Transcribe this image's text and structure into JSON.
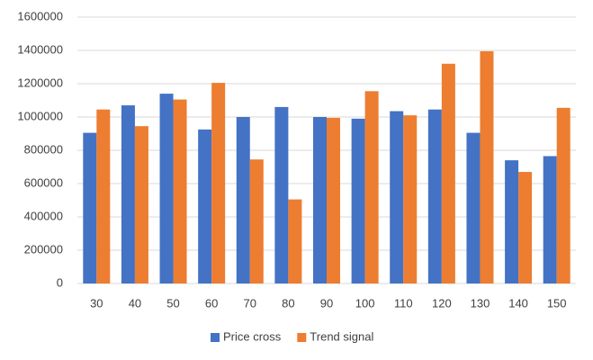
{
  "chart_data": {
    "type": "bar",
    "categories": [
      "30",
      "40",
      "50",
      "60",
      "70",
      "80",
      "90",
      "100",
      "110",
      "120",
      "130",
      "140",
      "150"
    ],
    "series": [
      {
        "name": "Price cross",
        "color": "#4472c4",
        "values": [
          905000,
          1070000,
          1140000,
          925000,
          1000000,
          1060000,
          1000000,
          990000,
          1035000,
          1045000,
          905000,
          740000,
          765000
        ]
      },
      {
        "name": "Trend signal",
        "color": "#ed7d31",
        "values": [
          1045000,
          945000,
          1105000,
          1205000,
          745000,
          505000,
          995000,
          1155000,
          1010000,
          1320000,
          1395000,
          670000,
          1055000
        ]
      }
    ],
    "ylim": [
      0,
      1600000
    ],
    "yticks": [
      0,
      200000,
      400000,
      600000,
      800000,
      1000000,
      1200000,
      1400000,
      1600000
    ],
    "grid": true,
    "legend": "bottom"
  }
}
